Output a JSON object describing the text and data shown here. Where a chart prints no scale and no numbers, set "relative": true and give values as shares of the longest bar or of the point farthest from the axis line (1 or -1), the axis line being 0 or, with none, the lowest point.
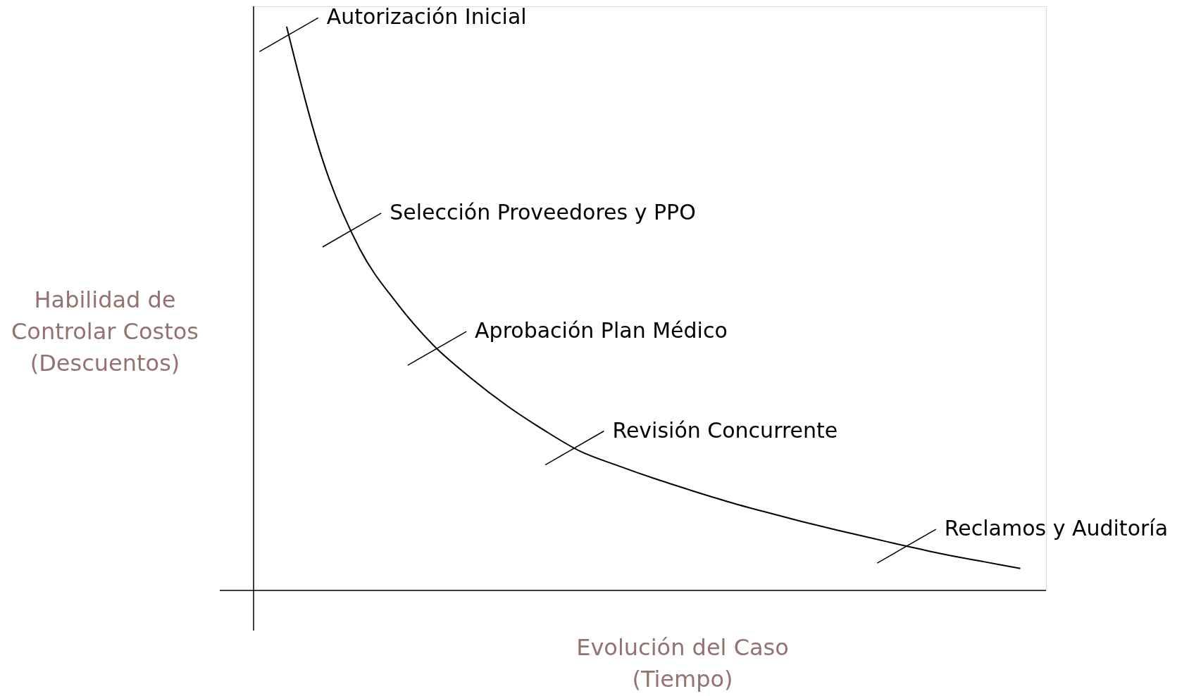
{
  "chart_data": {
    "type": "line",
    "relative": true,
    "xlabel": "Evolución del Caso\n(Tiempo)",
    "ylabel": "Habilidad de\nControlar Costos\n(Descuentos)",
    "categories": [
      null,
      null,
      null,
      null,
      null,
      null,
      null,
      null,
      null,
      null,
      null,
      null,
      null,
      null,
      null,
      null,
      null,
      null,
      null,
      null,
      null
    ],
    "series": [
      {
        "color": "#000000",
        "values": [
          1,
          0.76,
          0.605,
          0.51,
          0.435,
          0.378,
          0.328,
          0.285,
          0.247,
          0.222,
          0.199,
          0.178,
          0.158,
          0.14,
          0.123,
          0.107,
          0.092,
          0.077,
          0.063,
          0.051,
          0.039
        ]
      }
    ],
    "annotations": [
      "Autorización Inicial",
      "Selección Proveedores y PPO",
      "Aprobación Plan Médico",
      "Revisión Concurrente",
      "Reclamos y Auditoría"
    ]
  }
}
